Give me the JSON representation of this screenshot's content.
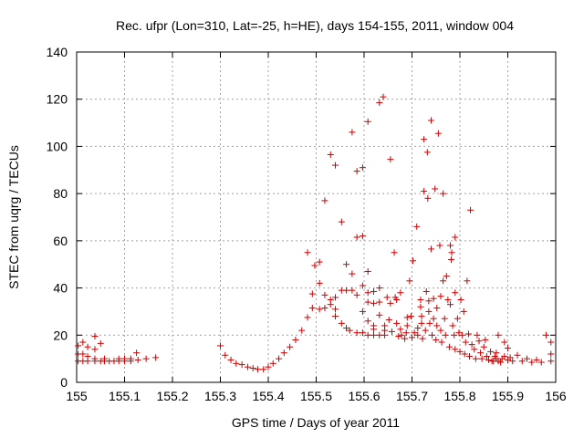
{
  "chart_data": {
    "type": "scatter",
    "title": "Rec. ufpr (Lon=310, Lat=-25, h=HE), days 154-155, 2011, window 004",
    "xlabel": "GPS time / Days of year 2011",
    "ylabel": "STEC from uqrg / TECUs",
    "xlim": [
      155,
      156
    ],
    "ylim": [
      0,
      140
    ],
    "grid": true,
    "marker": "plus",
    "color": "#cc0000",
    "x_ticks": [
      "155",
      "155.1",
      "155.2",
      "155.3",
      "155.4",
      "155.5",
      "155.6",
      "155.7",
      "155.8",
      "155.9",
      "156"
    ],
    "y_ticks": [
      "0",
      "20",
      "40",
      "60",
      "80",
      "100",
      "120",
      "140"
    ],
    "series": [
      {
        "name": "STEC",
        "points": [
          [
            155.003,
            15.5
          ],
          [
            155.003,
            12
          ],
          [
            155.003,
            9
          ],
          [
            155.013,
            17
          ],
          [
            155.013,
            12
          ],
          [
            155.013,
            9
          ],
          [
            155.023,
            15
          ],
          [
            155.023,
            11
          ],
          [
            155.023,
            9
          ],
          [
            155.038,
            19.5
          ],
          [
            155.038,
            14
          ],
          [
            155.038,
            10
          ],
          [
            155.038,
            9
          ],
          [
            155.05,
            16.5
          ],
          [
            155.05,
            9
          ],
          [
            155.058,
            10
          ],
          [
            155.058,
            9
          ],
          [
            155.068,
            9
          ],
          [
            155.078,
            9
          ],
          [
            155.088,
            10
          ],
          [
            155.088,
            9
          ],
          [
            155.1,
            10
          ],
          [
            155.1,
            9
          ],
          [
            155.113,
            10
          ],
          [
            155.113,
            9
          ],
          [
            155.125,
            12.5
          ],
          [
            155.128,
            9.5
          ],
          [
            155.145,
            10
          ],
          [
            155.165,
            10.5
          ],
          [
            155.3,
            15.5
          ],
          [
            155.31,
            11.5
          ],
          [
            155.322,
            9.5
          ],
          [
            155.333,
            8
          ],
          [
            155.345,
            7.5
          ],
          [
            155.357,
            6.5
          ],
          [
            155.368,
            6
          ],
          [
            155.378,
            5.5
          ],
          [
            155.39,
            5.5
          ],
          [
            155.4,
            6.5
          ],
          [
            155.41,
            8
          ],
          [
            155.422,
            10
          ],
          [
            155.433,
            12.5
          ],
          [
            155.445,
            15
          ],
          [
            155.457,
            18
          ],
          [
            155.47,
            22
          ],
          [
            155.482,
            27.5
          ],
          [
            155.482,
            55
          ],
          [
            155.492,
            37.5
          ],
          [
            155.492,
            31.5
          ],
          [
            155.497,
            49.5
          ],
          [
            155.507,
            51
          ],
          [
            155.507,
            42
          ],
          [
            155.507,
            31
          ],
          [
            155.518,
            37
          ],
          [
            155.518,
            31.5
          ],
          [
            155.518,
            77
          ],
          [
            155.53,
            96.5
          ],
          [
            155.53,
            33
          ],
          [
            155.53,
            35
          ],
          [
            155.54,
            92
          ],
          [
            155.54,
            31
          ],
          [
            155.54,
            36
          ],
          [
            155.54,
            28
          ],
          [
            155.553,
            68
          ],
          [
            155.553,
            25
          ],
          [
            155.553,
            39
          ],
          [
            155.563,
            50
          ],
          [
            155.563,
            23
          ],
          [
            155.563,
            39
          ],
          [
            155.57,
            22
          ],
          [
            155.575,
            46
          ],
          [
            155.575,
            39
          ],
          [
            155.575,
            106
          ],
          [
            155.585,
            21
          ],
          [
            155.585,
            37
          ],
          [
            155.585,
            61.5
          ],
          [
            155.585,
            89.5
          ],
          [
            155.597,
            41
          ],
          [
            155.597,
            62
          ],
          [
            155.597,
            91
          ],
          [
            155.597,
            21
          ],
          [
            155.597,
            30
          ],
          [
            155.608,
            20
          ],
          [
            155.608,
            47
          ],
          [
            155.608,
            110.5
          ],
          [
            155.608,
            38
          ],
          [
            155.608,
            34
          ],
          [
            155.608,
            26
          ],
          [
            155.62,
            20
          ],
          [
            155.62,
            38.5
          ],
          [
            155.62,
            33.5
          ],
          [
            155.62,
            24
          ],
          [
            155.62,
            22.5
          ],
          [
            155.632,
            20
          ],
          [
            155.632,
            118.5
          ],
          [
            155.632,
            40
          ],
          [
            155.632,
            34
          ],
          [
            155.632,
            28.5
          ],
          [
            155.64,
            121
          ],
          [
            155.643,
            20
          ],
          [
            155.643,
            24
          ],
          [
            155.643,
            22
          ],
          [
            155.648,
            36
          ],
          [
            155.652,
            26.5
          ],
          [
            155.655,
            94.5
          ],
          [
            155.655,
            33.5
          ],
          [
            155.658,
            21.5
          ],
          [
            155.663,
            55
          ],
          [
            155.665,
            36
          ],
          [
            155.668,
            35
          ],
          [
            155.668,
            25
          ],
          [
            155.672,
            19.5
          ],
          [
            155.676,
            38
          ],
          [
            155.676,
            22.5
          ],
          [
            155.678,
            20
          ],
          [
            155.685,
            18.5
          ],
          [
            155.688,
            21
          ],
          [
            155.69,
            27.5
          ],
          [
            155.69,
            24
          ],
          [
            155.695,
            43
          ],
          [
            155.698,
            28
          ],
          [
            155.7,
            19
          ],
          [
            155.702,
            51.5
          ],
          [
            155.705,
            21
          ],
          [
            155.71,
            66
          ],
          [
            155.712,
            23
          ],
          [
            155.712,
            20
          ],
          [
            155.718,
            35
          ],
          [
            155.718,
            32
          ],
          [
            155.72,
            28
          ],
          [
            155.72,
            25
          ],
          [
            155.722,
            18.5
          ],
          [
            155.725,
            103
          ],
          [
            155.725,
            81
          ],
          [
            155.728,
            22
          ],
          [
            155.73,
            38.5
          ],
          [
            155.732,
            97.5
          ],
          [
            155.733,
            78
          ],
          [
            155.735,
            34.5
          ],
          [
            155.735,
            30
          ],
          [
            155.737,
            25
          ],
          [
            155.74,
            111
          ],
          [
            155.74,
            56.5
          ],
          [
            155.742,
            20
          ],
          [
            155.745,
            35.5
          ],
          [
            155.745,
            27
          ],
          [
            155.748,
            82
          ],
          [
            155.75,
            18
          ],
          [
            155.752,
            31.5
          ],
          [
            155.752,
            24
          ],
          [
            155.755,
            105.5
          ],
          [
            155.758,
            58
          ],
          [
            155.76,
            36.5
          ],
          [
            155.76,
            22
          ],
          [
            155.762,
            17
          ],
          [
            155.765,
            80
          ],
          [
            155.765,
            43
          ],
          [
            155.768,
            27
          ],
          [
            155.77,
            20
          ],
          [
            155.772,
            45
          ],
          [
            155.775,
            35
          ],
          [
            155.778,
            15
          ],
          [
            155.78,
            33
          ],
          [
            155.78,
            58
          ],
          [
            155.782,
            52
          ],
          [
            155.783,
            55
          ],
          [
            155.785,
            24
          ],
          [
            155.788,
            20
          ],
          [
            155.79,
            61.5
          ],
          [
            155.79,
            38
          ],
          [
            155.79,
            14
          ],
          [
            155.795,
            27
          ],
          [
            155.798,
            21
          ],
          [
            155.8,
            13
          ],
          [
            155.802,
            35
          ],
          [
            155.805,
            20
          ],
          [
            155.808,
            30
          ],
          [
            155.81,
            12
          ],
          [
            155.812,
            17
          ],
          [
            155.815,
            43
          ],
          [
            155.818,
            20.5
          ],
          [
            155.82,
            11
          ],
          [
            155.822,
            73
          ],
          [
            155.825,
            16
          ],
          [
            155.83,
            14
          ],
          [
            155.833,
            10
          ],
          [
            155.836,
            20
          ],
          [
            155.84,
            17.5
          ],
          [
            155.843,
            12.5
          ],
          [
            155.846,
            10
          ],
          [
            155.85,
            15
          ],
          [
            155.853,
            18
          ],
          [
            155.856,
            11
          ],
          [
            155.86,
            9.5
          ],
          [
            155.864,
            13
          ],
          [
            155.867,
            9
          ],
          [
            155.87,
            9
          ],
          [
            155.873,
            11
          ],
          [
            155.876,
            12.5
          ],
          [
            155.876,
            10
          ],
          [
            155.88,
            9
          ],
          [
            155.88,
            20
          ],
          [
            155.885,
            8.5
          ],
          [
            155.888,
            10
          ],
          [
            155.893,
            17
          ],
          [
            155.893,
            11
          ],
          [
            155.9,
            9.5
          ],
          [
            155.9,
            14.5
          ],
          [
            155.905,
            10.5
          ],
          [
            155.91,
            9
          ],
          [
            155.92,
            11.5
          ],
          [
            155.93,
            9
          ],
          [
            155.94,
            10
          ],
          [
            155.95,
            8.5
          ],
          [
            155.96,
            9.5
          ],
          [
            155.97,
            8.5
          ],
          [
            155.98,
            20
          ],
          [
            155.99,
            17
          ],
          [
            155.99,
            12
          ],
          [
            155.99,
            9
          ]
        ]
      }
    ]
  }
}
